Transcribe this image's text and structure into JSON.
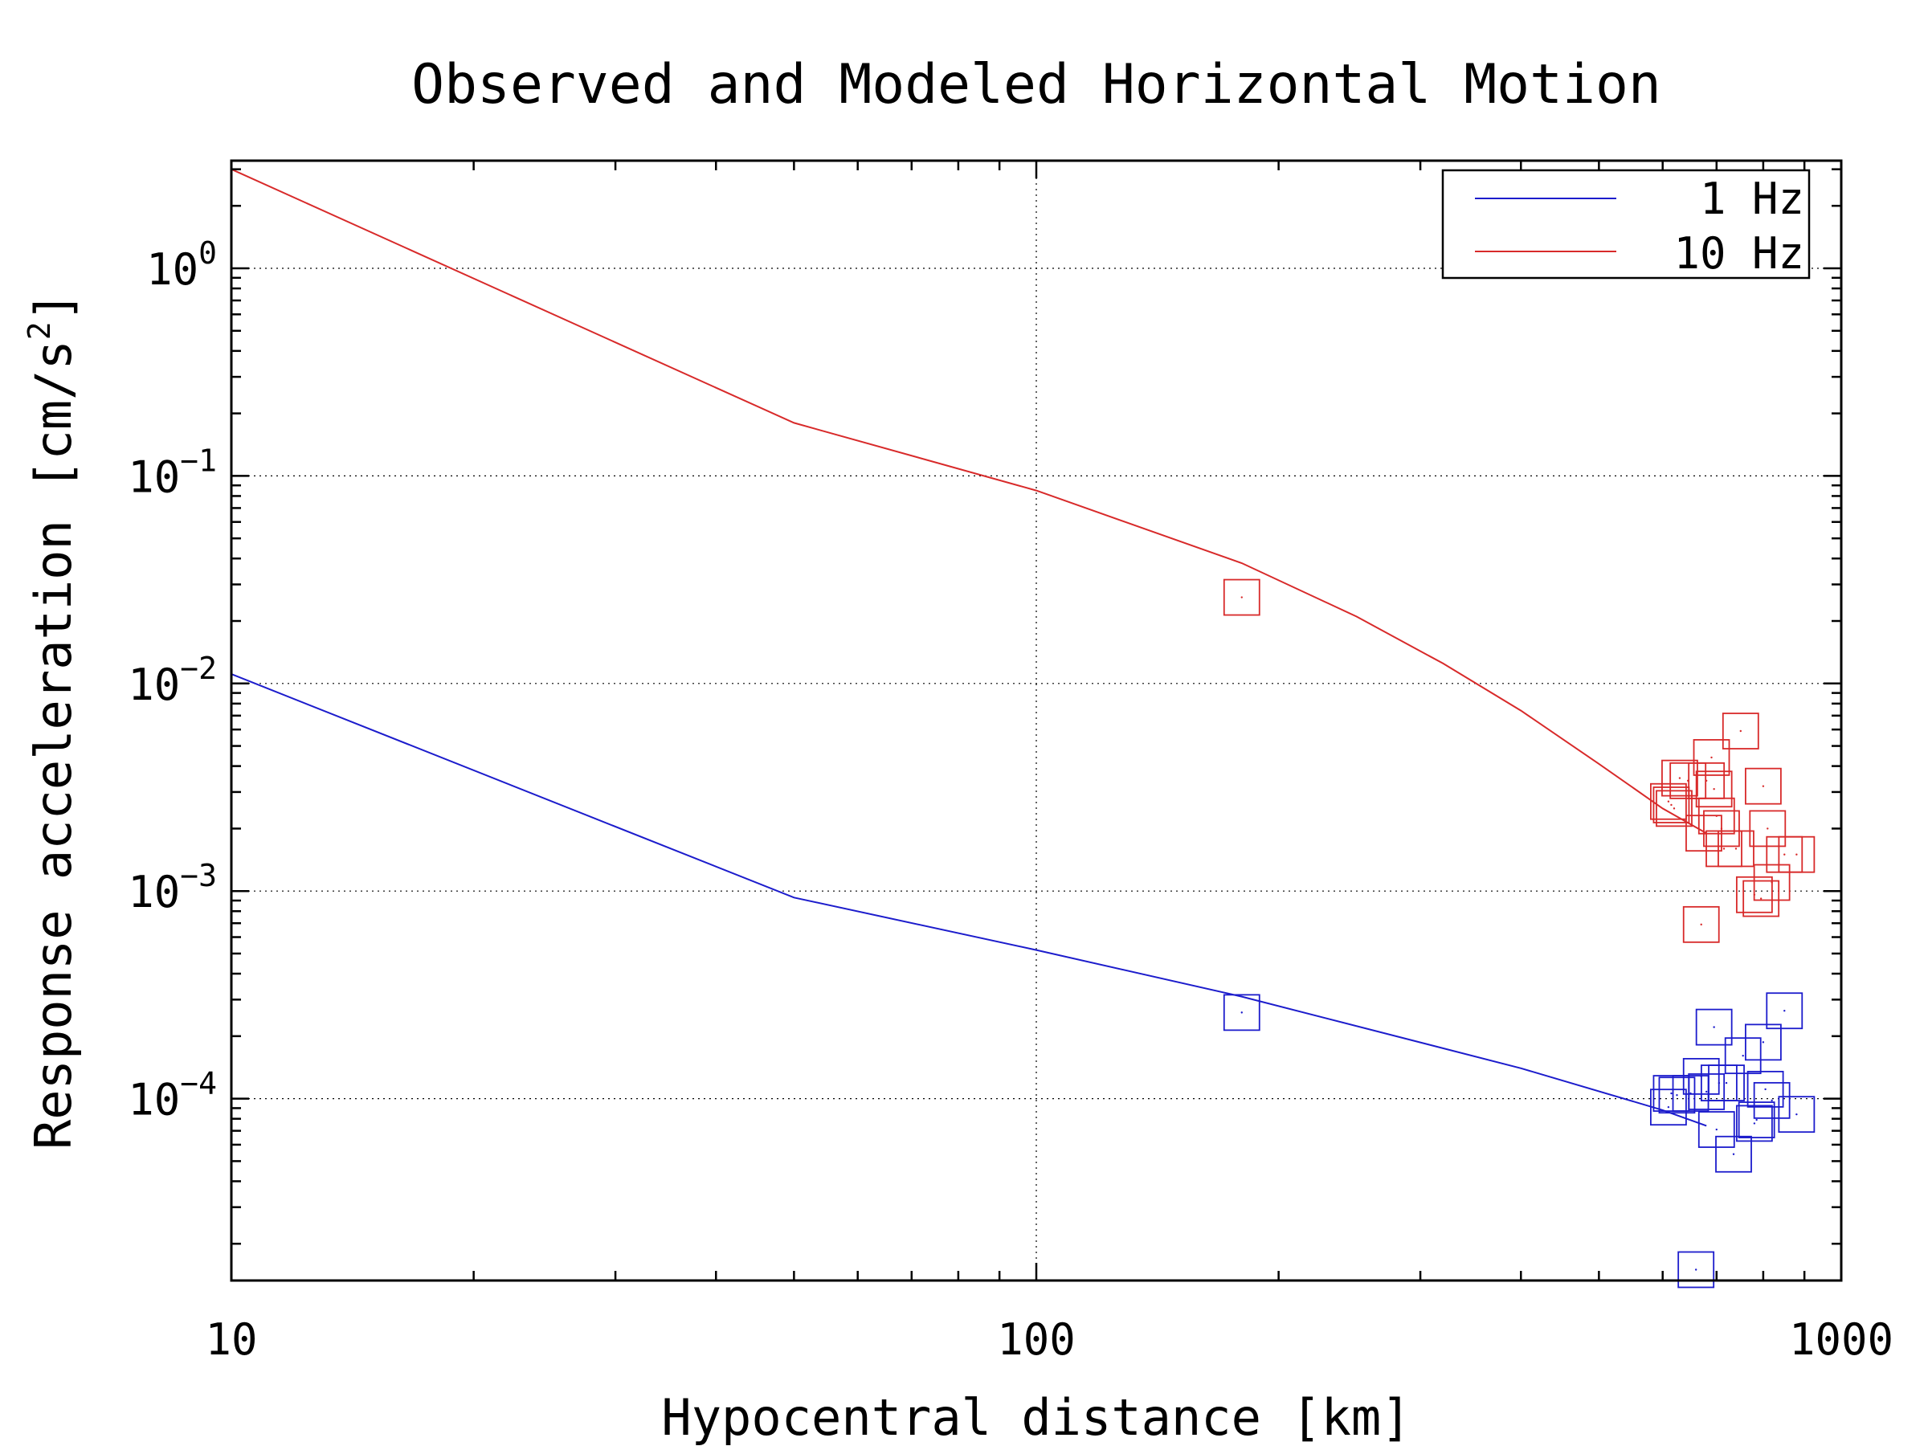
{
  "chart_data": {
    "type": "line",
    "title": "Observed and Modeled Horizontal Motion",
    "xlabel": "Hypocentral distance [km]",
    "ylabel_text": "Response acceleration [cm/s",
    "ylabel_sup": "2",
    "ylabel_end": "]",
    "x_scale": "log",
    "y_scale": "log",
    "xlim": [
      10,
      1000
    ],
    "ylim": [
      1.33e-05,
      3.3
    ],
    "x_ticks": [
      {
        "value": 10,
        "label": "10"
      },
      {
        "value": 100,
        "label": "100"
      },
      {
        "value": 1000,
        "label": "1000"
      }
    ],
    "y_ticks": [
      {
        "value": 1,
        "base": "10",
        "exp": "0"
      },
      {
        "value": 0.1,
        "base": "10",
        "exp": "−1"
      },
      {
        "value": 0.01,
        "base": "10",
        "exp": "−2"
      },
      {
        "value": 0.001,
        "base": "10",
        "exp": "−3"
      },
      {
        "value": 0.0001,
        "base": "10",
        "exp": "−4"
      }
    ],
    "grid": true,
    "legend_position": "top-right",
    "series": [
      {
        "name": "1 Hz",
        "color": "#1c1ccc",
        "line": [
          [
            10,
            0.0111
          ],
          [
            50,
            0.00093
          ],
          [
            100,
            0.00052
          ],
          [
            180,
            0.00031
          ],
          [
            400,
            0.00014
          ],
          [
            600,
            8.8e-05
          ],
          [
            680,
            7.4e-05
          ]
        ],
        "points": [
          [
            180,
            0.00026
          ],
          [
            610,
            9.1e-05
          ],
          [
            615,
            0.000106
          ],
          [
            625,
            0.000104
          ],
          [
            650,
            0.000106
          ],
          [
            660,
            1.5e-05
          ],
          [
            670,
            0.000128
          ],
          [
            680,
            0.000108
          ],
          [
            695,
            0.000221
          ],
          [
            700,
            7.1e-05
          ],
          [
            705,
            0.000119
          ],
          [
            720,
            0.000119
          ],
          [
            735,
            5.4e-05
          ],
          [
            755,
            0.000161
          ],
          [
            780,
            7.6e-05
          ],
          [
            785,
            7.9e-05
          ],
          [
            800,
            0.000187
          ],
          [
            805,
            0.000111
          ],
          [
            820,
            9.8e-05
          ],
          [
            850,
            0.000265
          ],
          [
            880,
            8.4e-05
          ]
        ]
      },
      {
        "name": "10 Hz",
        "color": "#d82a2a",
        "line": [
          [
            10,
            3.0
          ],
          [
            50,
            0.18
          ],
          [
            100,
            0.085
          ],
          [
            180,
            0.038
          ],
          [
            250,
            0.021
          ],
          [
            320,
            0.0125
          ],
          [
            400,
            0.0074
          ],
          [
            500,
            0.0041
          ],
          [
            600,
            0.0025
          ],
          [
            680,
            0.0019
          ]
        ],
        "points": [
          [
            180,
            0.026
          ],
          [
            610,
            0.0027
          ],
          [
            615,
            0.0026
          ],
          [
            620,
            0.0025
          ],
          [
            630,
            0.0035
          ],
          [
            645,
            0.0034
          ],
          [
            670,
            0.00069
          ],
          [
            675,
            0.0019
          ],
          [
            680,
            0.0034
          ],
          [
            690,
            0.0044
          ],
          [
            695,
            0.0031
          ],
          [
            700,
            0.0023
          ],
          [
            710,
            0.002
          ],
          [
            715,
            0.0016
          ],
          [
            740,
            0.0016
          ],
          [
            750,
            0.0059
          ],
          [
            780,
            0.00096
          ],
          [
            795,
            0.00092
          ],
          [
            800,
            0.0032
          ],
          [
            810,
            0.002
          ],
          [
            820,
            0.0011
          ],
          [
            850,
            0.0015
          ],
          [
            880,
            0.0015
          ]
        ]
      }
    ]
  }
}
